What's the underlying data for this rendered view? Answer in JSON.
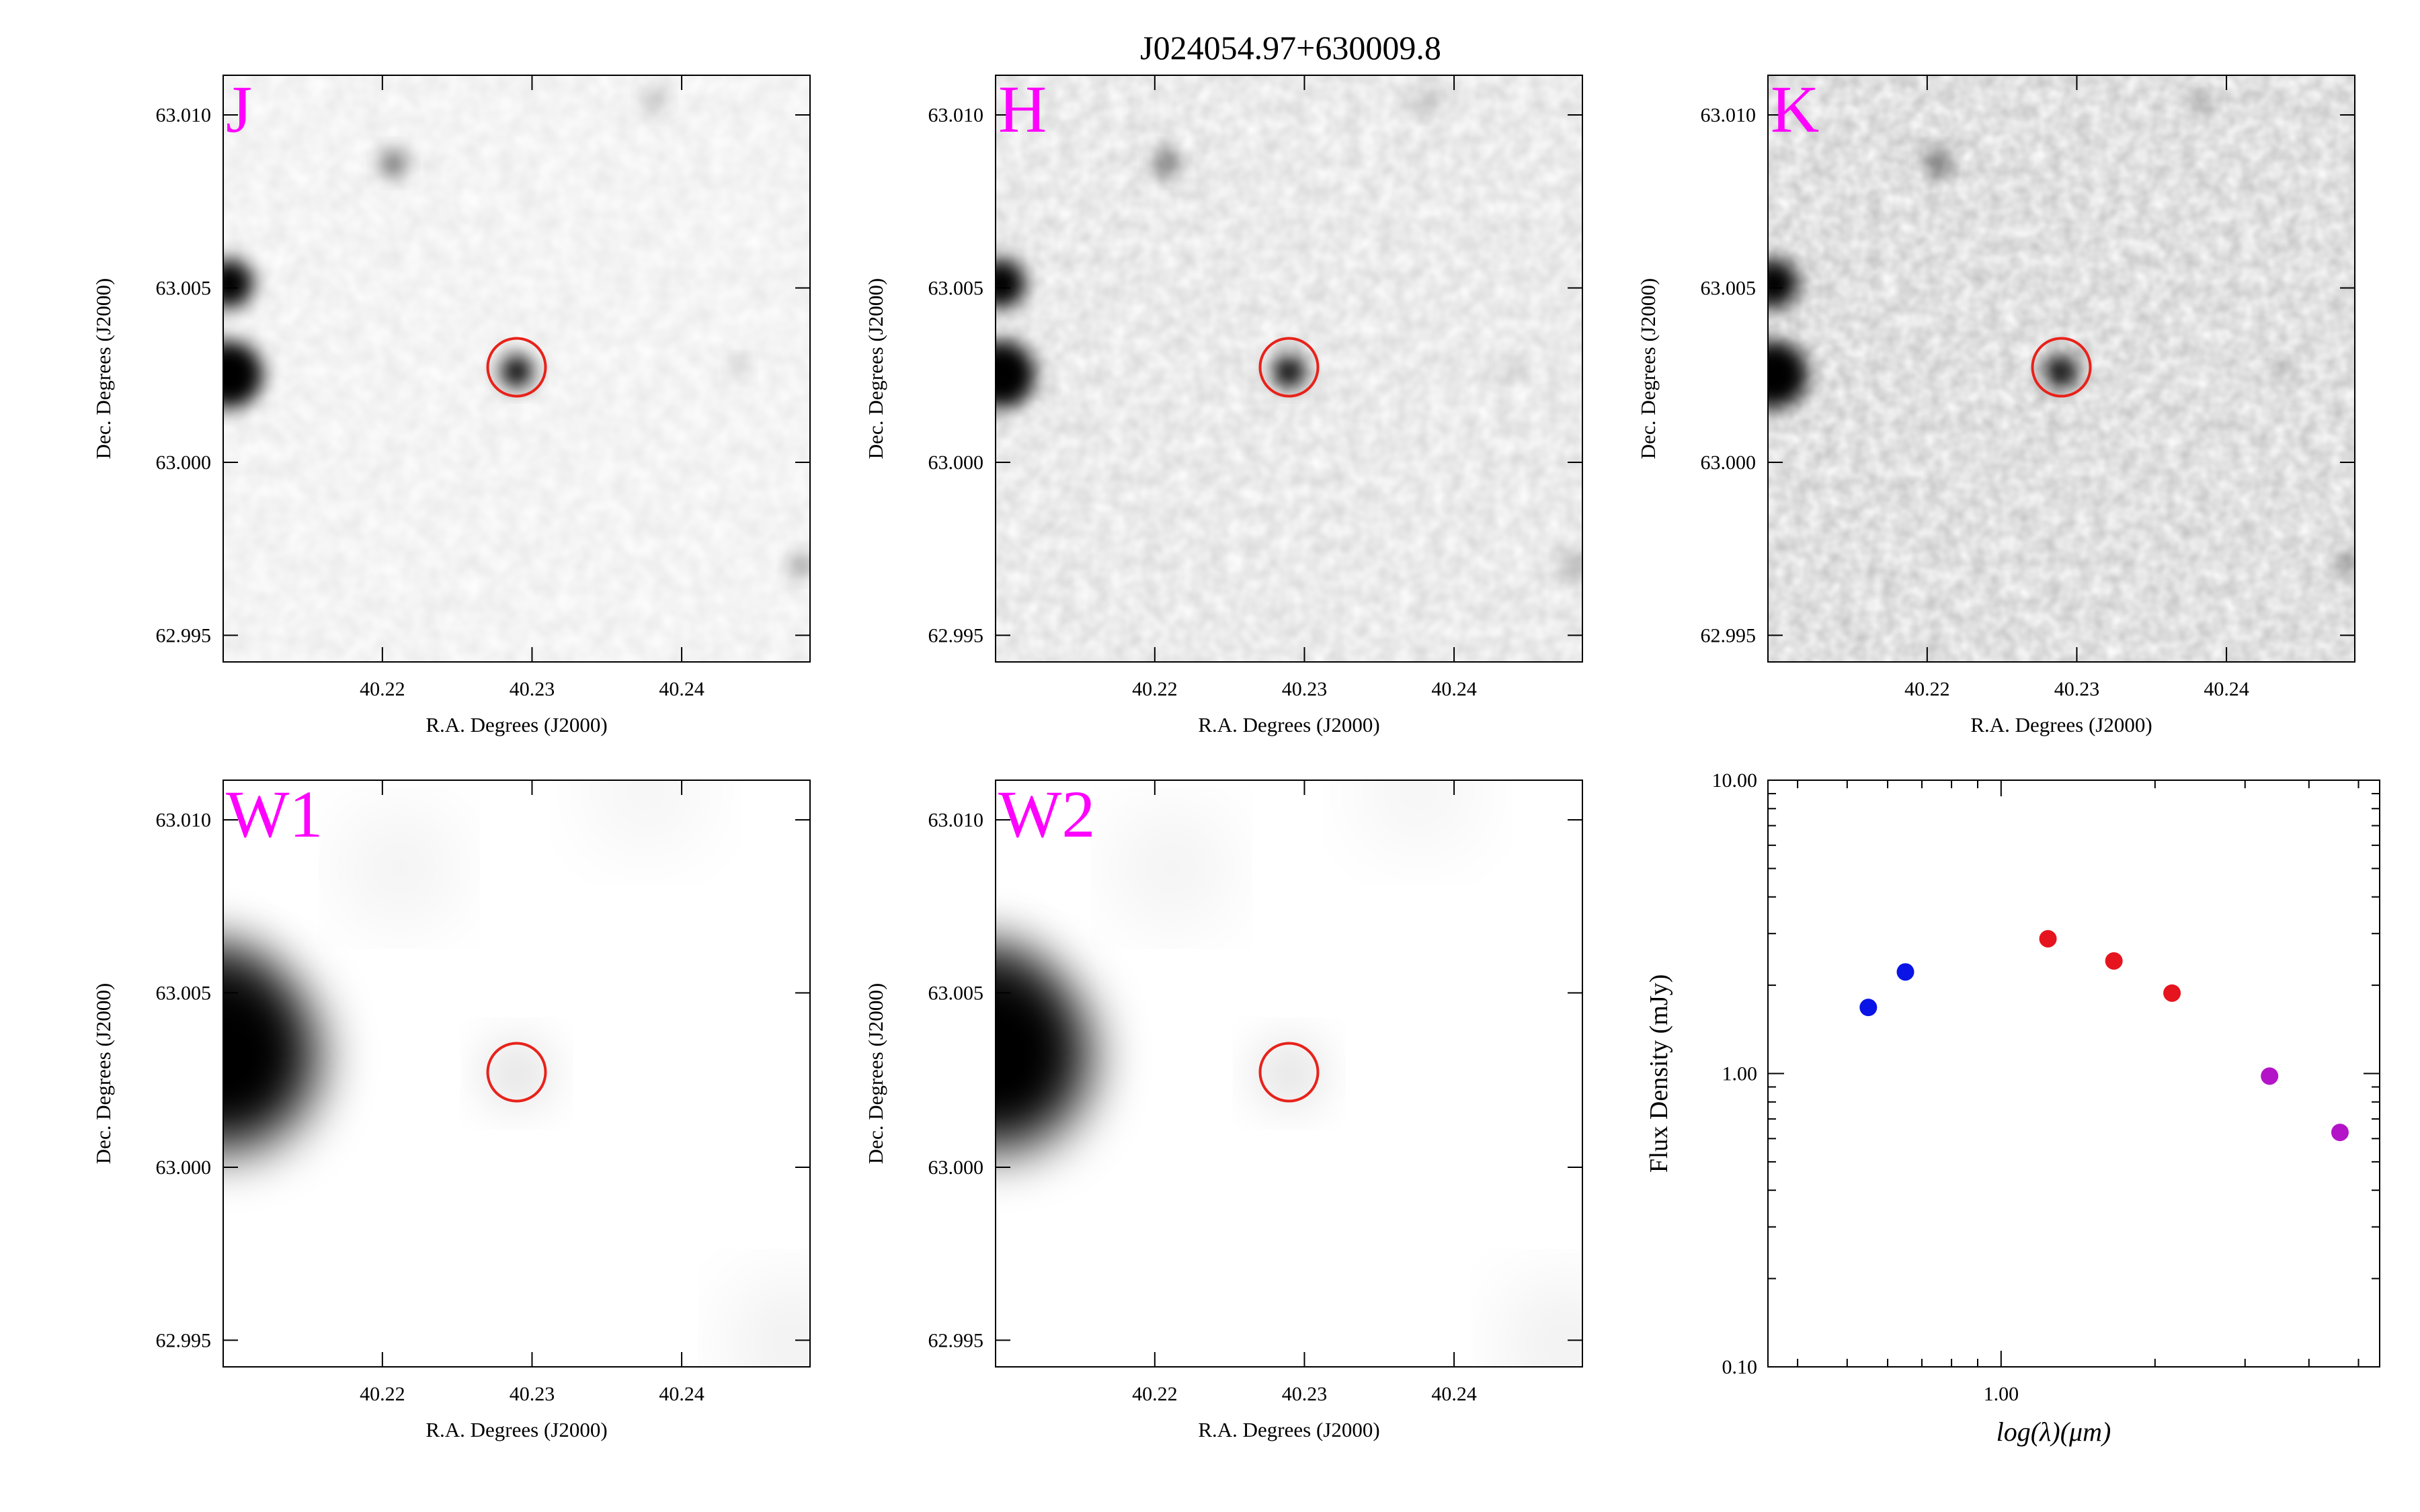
{
  "title": "J024054.97+630009.8",
  "colors": {
    "band_label": "#ff00ff",
    "aperture": "#e8221a",
    "sed_blue": "#0a14e6",
    "sed_red": "#e6141e",
    "sed_magenta": "#b414c8"
  },
  "panels": [
    {
      "band": "J",
      "xlabel": "R.A. Degrees (J2000)",
      "ylabel": "Dec. Degrees (J2000)",
      "xticks": [
        "40.22",
        "40.23",
        "40.24"
      ],
      "yticks": [
        "63.010",
        "63.005",
        "63.000",
        "62.995"
      ]
    },
    {
      "band": "H",
      "xlabel": "R.A. Degrees (J2000)",
      "ylabel": "Dec. Degrees (J2000)",
      "xticks": [
        "40.22",
        "40.23",
        "40.24"
      ],
      "yticks": [
        "63.010",
        "63.005",
        "63.000",
        "62.995"
      ]
    },
    {
      "band": "K",
      "xlabel": "R.A. Degrees (J2000)",
      "ylabel": "Dec. Degrees (J2000)",
      "xticks": [
        "40.22",
        "40.23",
        "40.24"
      ],
      "yticks": [
        "63.010",
        "63.005",
        "63.000",
        "62.995"
      ]
    },
    {
      "band": "W1",
      "xlabel": "R.A. Degrees (J2000)",
      "ylabel": "Dec. Degrees (J2000)",
      "xticks": [
        "40.22",
        "40.23",
        "40.24"
      ],
      "yticks": [
        "63.010",
        "63.005",
        "63.000",
        "62.995"
      ]
    },
    {
      "band": "W2",
      "xlabel": "R.A. Degrees (J2000)",
      "ylabel": "Dec. Degrees (J2000)",
      "xticks": [
        "40.22",
        "40.23",
        "40.24"
      ],
      "yticks": [
        "63.010",
        "63.005",
        "63.000",
        "62.995"
      ]
    }
  ],
  "chart_data": {
    "type": "scatter",
    "xlabel": "log(λ)(μm)",
    "ylabel": "Flux Density (mJy)",
    "xscale": "log",
    "yscale": "log",
    "xlim": [
      0.35,
      5.5
    ],
    "ylim": [
      0.1,
      10
    ],
    "xtick_labels": [
      "1.00"
    ],
    "ytick_labels": [
      "10.00",
      "1.00",
      "0.10"
    ],
    "grid": false,
    "series": [
      {
        "color": "#0a14e6",
        "points": [
          {
            "x": 0.55,
            "y": 1.68
          },
          {
            "x": 0.65,
            "y": 2.22
          }
        ]
      },
      {
        "color": "#e6141e",
        "points": [
          {
            "x": 1.235,
            "y": 2.88
          },
          {
            "x": 1.662,
            "y": 2.42
          },
          {
            "x": 2.159,
            "y": 1.88
          }
        ]
      },
      {
        "color": "#b414c8",
        "points": [
          {
            "x": 3.35,
            "y": 0.98
          },
          {
            "x": 4.6,
            "y": 0.63
          }
        ]
      }
    ]
  }
}
